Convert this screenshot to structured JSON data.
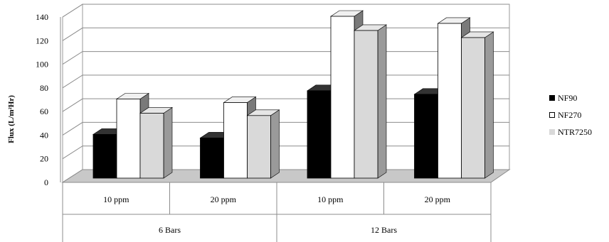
{
  "chart_data": {
    "type": "bar",
    "title": "",
    "xlabel": "",
    "ylabel": "Flux (L/m²Hr)",
    "ylim": [
      0,
      140
    ],
    "yticks": [
      0,
      20,
      40,
      60,
      80,
      100,
      120,
      140
    ],
    "categories": [
      "10 ppm",
      "20 ppm",
      "10 ppm",
      "20 ppm"
    ],
    "groups": [
      {
        "label": "6 Bars",
        "span": [
          0,
          1
        ]
      },
      {
        "label": "12 Bars",
        "span": [
          2,
          3
        ]
      }
    ],
    "series": [
      {
        "name": "NF90",
        "color": "#000000",
        "side": "#555555",
        "values": [
          37,
          34,
          74,
          71
        ]
      },
      {
        "name": "NF270",
        "color": "#ffffff",
        "side": "#7a7a7a",
        "values": [
          67,
          64,
          137,
          131
        ]
      },
      {
        "name": "NTR7250",
        "color": "#d9d9d9",
        "side": "#9a9a9a",
        "values": [
          55,
          53,
          125,
          119
        ]
      }
    ],
    "grid": true,
    "legend": "right",
    "style": "3d-clustered-column"
  }
}
